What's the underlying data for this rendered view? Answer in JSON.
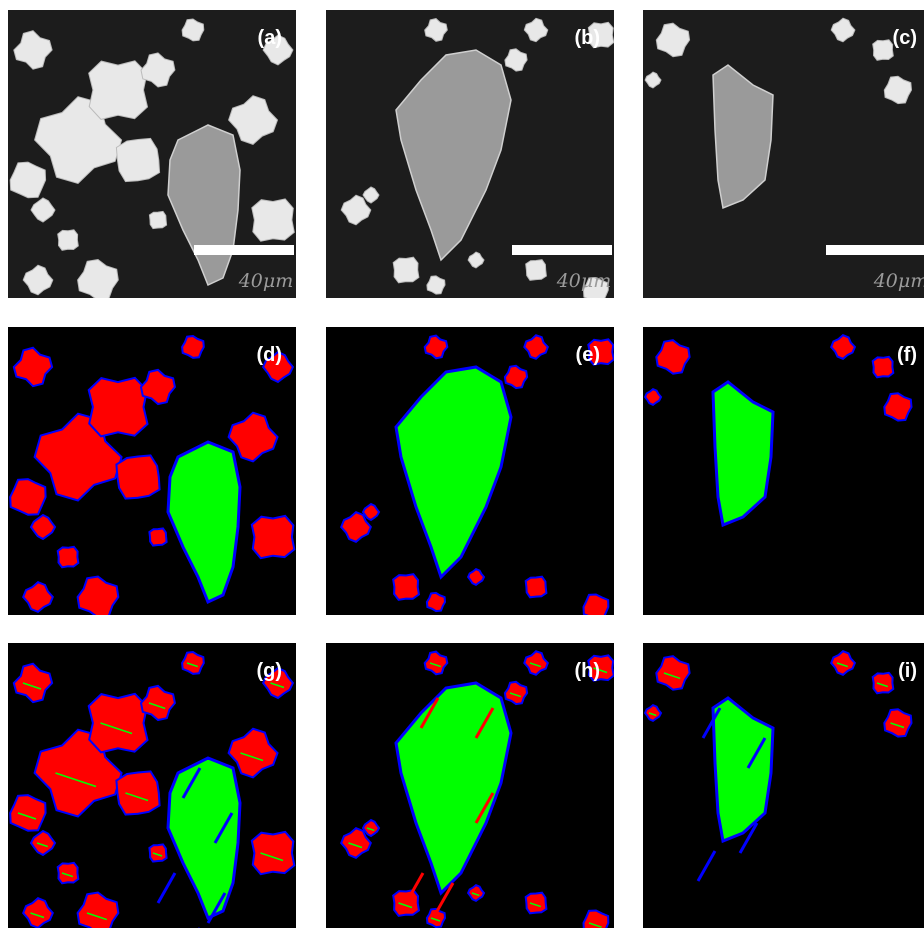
{
  "panels": [
    {
      "label": "(a)",
      "scale_label": "40μm"
    },
    {
      "label": "(b)",
      "scale_label": "40μm"
    },
    {
      "label": "(c)",
      "scale_label": "40μm"
    },
    {
      "label": "(d)"
    },
    {
      "label": "(e)"
    },
    {
      "label": "(f)"
    },
    {
      "label": "(g)"
    },
    {
      "label": "(h)"
    },
    {
      "label": "(i)"
    }
  ]
}
